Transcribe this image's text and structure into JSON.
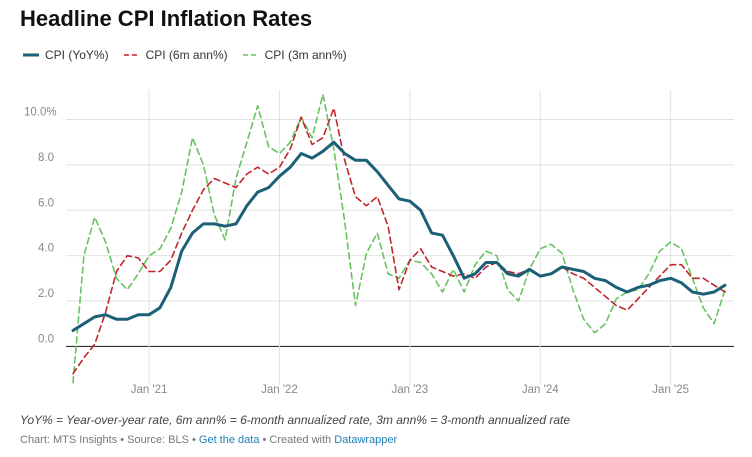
{
  "chart_data": {
    "type": "line",
    "title": "Headline CPI Inflation Rates",
    "xlabel": "",
    "ylabel": "",
    "ylim": [
      -1.7,
      11.3
    ],
    "yticks": [
      {
        "value": 10,
        "label": "10.0%"
      },
      {
        "value": 8,
        "label": "8.0"
      },
      {
        "value": 6,
        "label": "6.0"
      },
      {
        "value": 4,
        "label": "4.0"
      },
      {
        "value": 2,
        "label": "2.0"
      },
      {
        "value": 0,
        "label": "0.0"
      }
    ],
    "xticks": [
      {
        "index": 7,
        "label": "Jan '21"
      },
      {
        "index": 19,
        "label": "Jan '22"
      },
      {
        "index": 31,
        "label": "Jan '23"
      },
      {
        "index": 43,
        "label": "Jan '24"
      },
      {
        "index": 55,
        "label": "Jan '25"
      }
    ],
    "x": [
      "Jun 2020",
      "Jul 2020",
      "Aug 2020",
      "Sep 2020",
      "Oct 2020",
      "Nov 2020",
      "Dec 2020",
      "Jan 2021",
      "Feb 2021",
      "Mar 2021",
      "Apr 2021",
      "May 2021",
      "Jun 2021",
      "Jul 2021",
      "Aug 2021",
      "Sep 2021",
      "Oct 2021",
      "Nov 2021",
      "Dec 2021",
      "Jan 2022",
      "Feb 2022",
      "Mar 2022",
      "Apr 2022",
      "May 2022",
      "Jun 2022",
      "Jul 2022",
      "Aug 2022",
      "Sep 2022",
      "Oct 2022",
      "Nov 2022",
      "Dec 2022",
      "Jan 2023",
      "Feb 2023",
      "Mar 2023",
      "Apr 2023",
      "May 2023",
      "Jun 2023",
      "Jul 2023",
      "Aug 2023",
      "Sep 2023",
      "Oct 2023",
      "Nov 2023",
      "Dec 2023",
      "Jan 2024",
      "Feb 2024",
      "Mar 2024",
      "Apr 2024",
      "May 2024",
      "Jun 2024",
      "Jul 2024",
      "Aug 2024",
      "Sep 2024",
      "Oct 2024",
      "Nov 2024",
      "Dec 2024",
      "Jan 2025",
      "Feb 2025",
      "Mar 2025",
      "Apr 2025",
      "May 2025",
      "Jun 2025"
    ],
    "series": [
      {
        "name": "CPI (YoY%)",
        "color": "#1c6078",
        "style": "solid",
        "values": [
          0.7,
          1.0,
          1.3,
          1.4,
          1.2,
          1.2,
          1.4,
          1.4,
          1.7,
          2.6,
          4.2,
          5.0,
          5.4,
          5.4,
          5.3,
          5.4,
          6.2,
          6.8,
          7.0,
          7.5,
          7.9,
          8.5,
          8.3,
          8.6,
          9.0,
          8.5,
          8.2,
          8.2,
          7.7,
          7.1,
          6.5,
          6.4,
          6.0,
          5.0,
          4.9,
          4.0,
          3.0,
          3.2,
          3.7,
          3.7,
          3.2,
          3.1,
          3.4,
          3.1,
          3.2,
          3.5,
          3.4,
          3.3,
          3.0,
          2.9,
          2.6,
          2.4,
          2.6,
          2.7,
          2.9,
          3.0,
          2.8,
          2.4,
          2.3,
          2.4,
          2.7
        ]
      },
      {
        "name": "CPI (6m ann%)",
        "color": "#c0262d",
        "style": "dash",
        "values": [
          -1.2,
          -0.5,
          0.1,
          1.5,
          3.3,
          4.0,
          3.9,
          3.3,
          3.3,
          3.8,
          5.0,
          6.0,
          6.9,
          7.4,
          7.2,
          7.0,
          7.6,
          7.9,
          7.6,
          7.9,
          8.7,
          10.1,
          8.9,
          9.2,
          10.5,
          8.2,
          6.6,
          6.2,
          6.6,
          5.3,
          2.5,
          3.8,
          4.3,
          3.5,
          3.3,
          3.1,
          3.2,
          3.0,
          3.5,
          3.7,
          3.3,
          3.2,
          3.4,
          3.1,
          3.2,
          3.5,
          3.2,
          3.0,
          2.6,
          2.2,
          1.8,
          1.6,
          2.1,
          2.6,
          3.1,
          3.6,
          3.6,
          3.0,
          3.0,
          2.7,
          2.4
        ]
      },
      {
        "name": "CPI (3m ann%)",
        "color": "#66c45e",
        "style": "dash",
        "values": [
          -1.6,
          4.0,
          5.7,
          4.6,
          3.0,
          2.5,
          3.2,
          4.0,
          4.3,
          5.2,
          6.8,
          9.2,
          8.0,
          5.8,
          4.7,
          7.4,
          9.0,
          10.6,
          8.8,
          8.5,
          9.0,
          10.1,
          9.2,
          11.1,
          8.7,
          5.5,
          1.8,
          4.1,
          5.0,
          3.2,
          3.0,
          3.8,
          3.7,
          3.2,
          2.4,
          3.4,
          2.4,
          3.6,
          4.2,
          4.0,
          2.5,
          2.0,
          3.4,
          4.3,
          4.5,
          4.1,
          2.5,
          1.2,
          0.6,
          1.0,
          2.1,
          2.4,
          2.5,
          3.2,
          4.2,
          4.6,
          4.3,
          3.0,
          1.7,
          1.0,
          2.5
        ]
      }
    ],
    "legend": "top-left"
  },
  "notes": "YoY% = Year-over-year rate, 6m ann% = 6-month annualized rate, 3m ann% = 3-month annualized rate",
  "footer": {
    "prefix": "Chart: MTS Insights • Source: BLS • ",
    "data_link": "Get the data",
    "middle": " • Created with ",
    "tool_link": "Datawrapper"
  }
}
